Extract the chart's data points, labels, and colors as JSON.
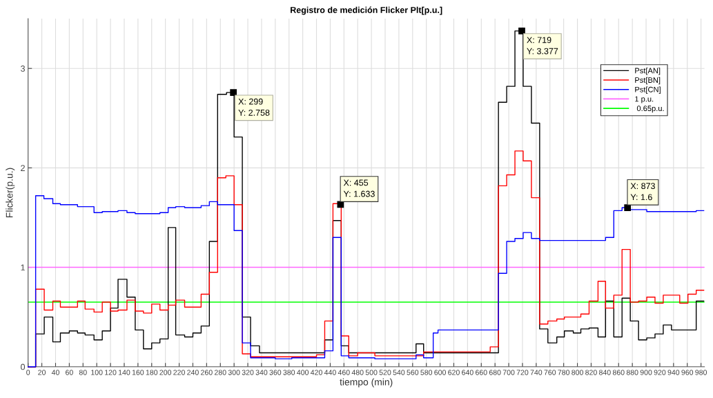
{
  "chart_data": {
    "type": "step",
    "title": "Registro de medición Flicker Plt[p.u.]",
    "xlabel": "tiempo (min)",
    "ylabel": "Flicker(p.u.)",
    "xlim": [
      0,
      985
    ],
    "ylim": [
      0,
      3.5
    ],
    "xticks": [
      0,
      20,
      40,
      60,
      80,
      100,
      120,
      140,
      160,
      180,
      200,
      220,
      240,
      260,
      280,
      300,
      320,
      340,
      360,
      380,
      400,
      420,
      440,
      460,
      480,
      500,
      520,
      540,
      560,
      580,
      600,
      620,
      640,
      660,
      680,
      700,
      720,
      740,
      760,
      780,
      800,
      820,
      840,
      860,
      880,
      900,
      920,
      940,
      960,
      980
    ],
    "yticks": [
      0,
      1,
      2,
      3
    ],
    "grid": true,
    "legend": "top right",
    "series": [
      {
        "name": "Pst[AN]",
        "color": "#000000",
        "x": [
          0,
          11,
          23.5,
          36,
          47,
          60,
          72,
          83,
          96,
          108,
          120,
          131,
          144,
          156,
          168,
          180,
          192,
          204,
          215,
          228,
          240,
          252,
          264,
          276,
          289,
          300,
          312,
          324,
          337,
          432,
          444,
          456,
          467,
          565,
          576,
          685,
          697,
          709,
          721,
          733,
          745,
          757,
          770,
          781,
          794,
          805,
          817,
          830,
          841,
          853,
          865,
          877,
          889,
          901,
          913,
          925,
          937,
          949,
          961,
          973,
          984
        ],
        "values": [
          0,
          0.33,
          0.5,
          0.25,
          0.34,
          0.36,
          0.34,
          0.32,
          0.27,
          0.36,
          0.59,
          0.88,
          0.7,
          0.37,
          0.18,
          0.24,
          0.28,
          1.4,
          0.32,
          0.3,
          0.34,
          0.41,
          1.26,
          2.74,
          2.758,
          2.31,
          0.5,
          0.21,
          0.14,
          0.27,
          1.47,
          0.21,
          0.14,
          0.23,
          0.14,
          2.66,
          2.82,
          3.377,
          2.82,
          2.45,
          0.38,
          0.24,
          0.3,
          0.36,
          0.34,
          0.38,
          0.39,
          0.3,
          0.66,
          0.3,
          0.69,
          0.46,
          0.27,
          0.29,
          0.33,
          0.42,
          0.37,
          0.37,
          0.37,
          0.66,
          0.66
        ]
      },
      {
        "name": "Pst[BN]",
        "color": "#ff0000",
        "x": [
          0,
          11,
          23.5,
          36,
          47,
          72,
          83,
          96,
          108,
          120,
          131,
          144,
          156,
          168,
          180,
          192,
          204,
          215,
          228,
          252,
          264,
          276,
          288,
          300,
          312,
          324,
          420,
          432,
          444,
          456,
          467,
          480,
          505,
          576,
          673,
          685,
          697,
          709,
          721,
          733,
          745,
          757,
          770,
          781,
          805,
          817,
          830,
          841,
          853,
          865,
          877,
          889,
          901,
          913,
          925,
          949,
          961,
          973,
          984
        ],
        "values": [
          0,
          0.78,
          0.57,
          0.66,
          0.6,
          0.66,
          0.58,
          0.55,
          0.65,
          0.56,
          0.57,
          0.67,
          0.56,
          0.54,
          0.63,
          0.57,
          0.62,
          0.67,
          0.6,
          0.73,
          0.95,
          1.9,
          1.92,
          1.63,
          0.13,
          0.1,
          0.12,
          0.46,
          1.64,
          0.31,
          0.11,
          0.14,
          0.11,
          0.15,
          0.2,
          1.82,
          1.93,
          2.17,
          2.07,
          1.7,
          0.43,
          0.46,
          0.48,
          0.5,
          0.53,
          0.66,
          0.86,
          0.59,
          0.72,
          1.18,
          0.65,
          0.66,
          0.7,
          0.64,
          0.72,
          0.64,
          0.73,
          0.77,
          0.77
        ]
      },
      {
        "name": "Pst[CN]",
        "color": "#0000ff",
        "x": [
          0,
          11,
          23,
          36,
          47,
          60,
          72,
          96,
          108,
          131,
          144,
          156,
          192,
          204,
          215,
          228,
          252,
          264,
          276,
          300,
          312,
          324,
          360,
          384,
          432,
          444,
          456,
          467,
          505,
          565,
          576,
          590,
          597,
          685,
          697,
          709,
          721,
          733,
          745,
          841,
          853,
          865,
          877,
          901,
          973,
          984
        ],
        "values": [
          0,
          1.72,
          1.69,
          1.64,
          1.63,
          1.63,
          1.61,
          1.55,
          1.56,
          1.57,
          1.55,
          1.54,
          1.55,
          1.6,
          1.61,
          1.6,
          1.62,
          1.66,
          1.63,
          1.37,
          0.24,
          0.09,
          0.08,
          0.09,
          0.16,
          1.3,
          0.11,
          0.09,
          0.08,
          0.12,
          0.09,
          0.34,
          0.37,
          0.94,
          1.26,
          1.29,
          1.35,
          1.29,
          1.27,
          1.3,
          1.57,
          1.6,
          1.58,
          1.56,
          1.57,
          1.57
        ]
      }
    ],
    "ref_lines": [
      {
        "axis": "y",
        "value": 1,
        "label": "1 p.u.",
        "color": "#ff66ff"
      },
      {
        "axis": "y",
        "value": 0.65,
        "label": " 0.65p.u.",
        "color": "#00ff00"
      }
    ],
    "annotations": [
      {
        "text": "X: 299\nY: 2.758",
        "x": 299,
        "y": 2.758
      },
      {
        "text": "X: 455\nY: 1.633",
        "x": 455,
        "y": 1.633
      },
      {
        "text": "X: 719\nY: 3.377",
        "x": 719,
        "y": 3.377
      },
      {
        "text": "X: 873\nY: 1.6",
        "x": 873,
        "y": 1.6
      }
    ]
  }
}
